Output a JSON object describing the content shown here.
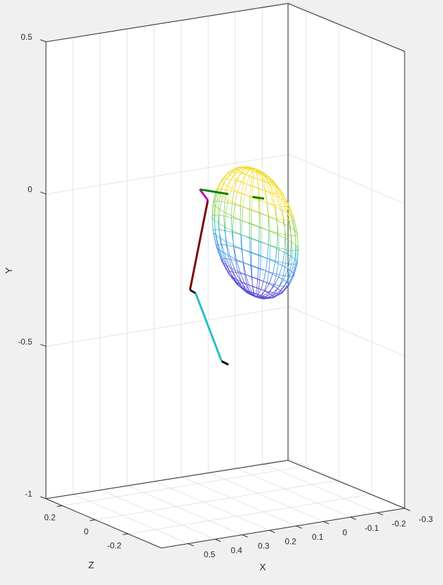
{
  "chart_data": {
    "type": "line3d",
    "xlabel": "X",
    "ylabel": "Y",
    "zlabel": "Z",
    "xlim": [
      -0.3,
      0.6
    ],
    "ylim": [
      -1,
      0.5
    ],
    "zlim": [
      -0.4,
      0.3
    ],
    "xticks": [
      -0.3,
      -0.2,
      -0.1,
      0,
      0.1,
      0.2,
      0.3,
      0.4,
      0.5
    ],
    "yticks": [
      -1,
      -0.5,
      0,
      0.5
    ],
    "zticks": [
      -0.2,
      0,
      0.2
    ],
    "grid": true,
    "series": [
      {
        "color": "#c000c0",
        "x": [
          0.214,
          0.184
        ],
        "y": [
          0.029,
          -0.011
        ],
        "z": [
          0,
          0
        ]
      },
      {
        "color": "#7a0000",
        "x": [
          0.184,
          0.25
        ],
        "y": [
          -0.011,
          -0.296
        ],
        "z": [
          0,
          0
        ]
      },
      {
        "color": "#101040",
        "x": [
          0.25,
          0.229
        ],
        "y": [
          -0.296,
          -0.31
        ],
        "z": [
          0,
          0
        ]
      },
      {
        "color": "#20bfc4",
        "x": [
          0.229,
          0.133
        ],
        "y": [
          -0.31,
          -0.547
        ],
        "z": [
          0,
          0
        ]
      },
      {
        "color": "#000000",
        "x": [
          0.133,
          0.108
        ],
        "y": [
          -0.547,
          -0.562
        ],
        "z": [
          0,
          0
        ]
      },
      {
        "color": "#008000",
        "x": [
          0.214,
          0.108
        ],
        "y": [
          0.029,
          -0.002
        ],
        "z": [
          0,
          0
        ]
      },
      {
        "color": "#008000",
        "x": [
          0.019,
          -0.024
        ],
        "y": [
          -0.024,
          -0.036
        ],
        "z": [
          0,
          0
        ]
      }
    ],
    "surface": {
      "center": [
        0.009,
        -0.143,
        0
      ],
      "radii": [
        0.05,
        0.21,
        0.25
      ],
      "colormap": [
        "#5a4fd6",
        "#3b8fe6",
        "#33bcc0",
        "#8fd150",
        "#f2dc34"
      ]
    }
  }
}
